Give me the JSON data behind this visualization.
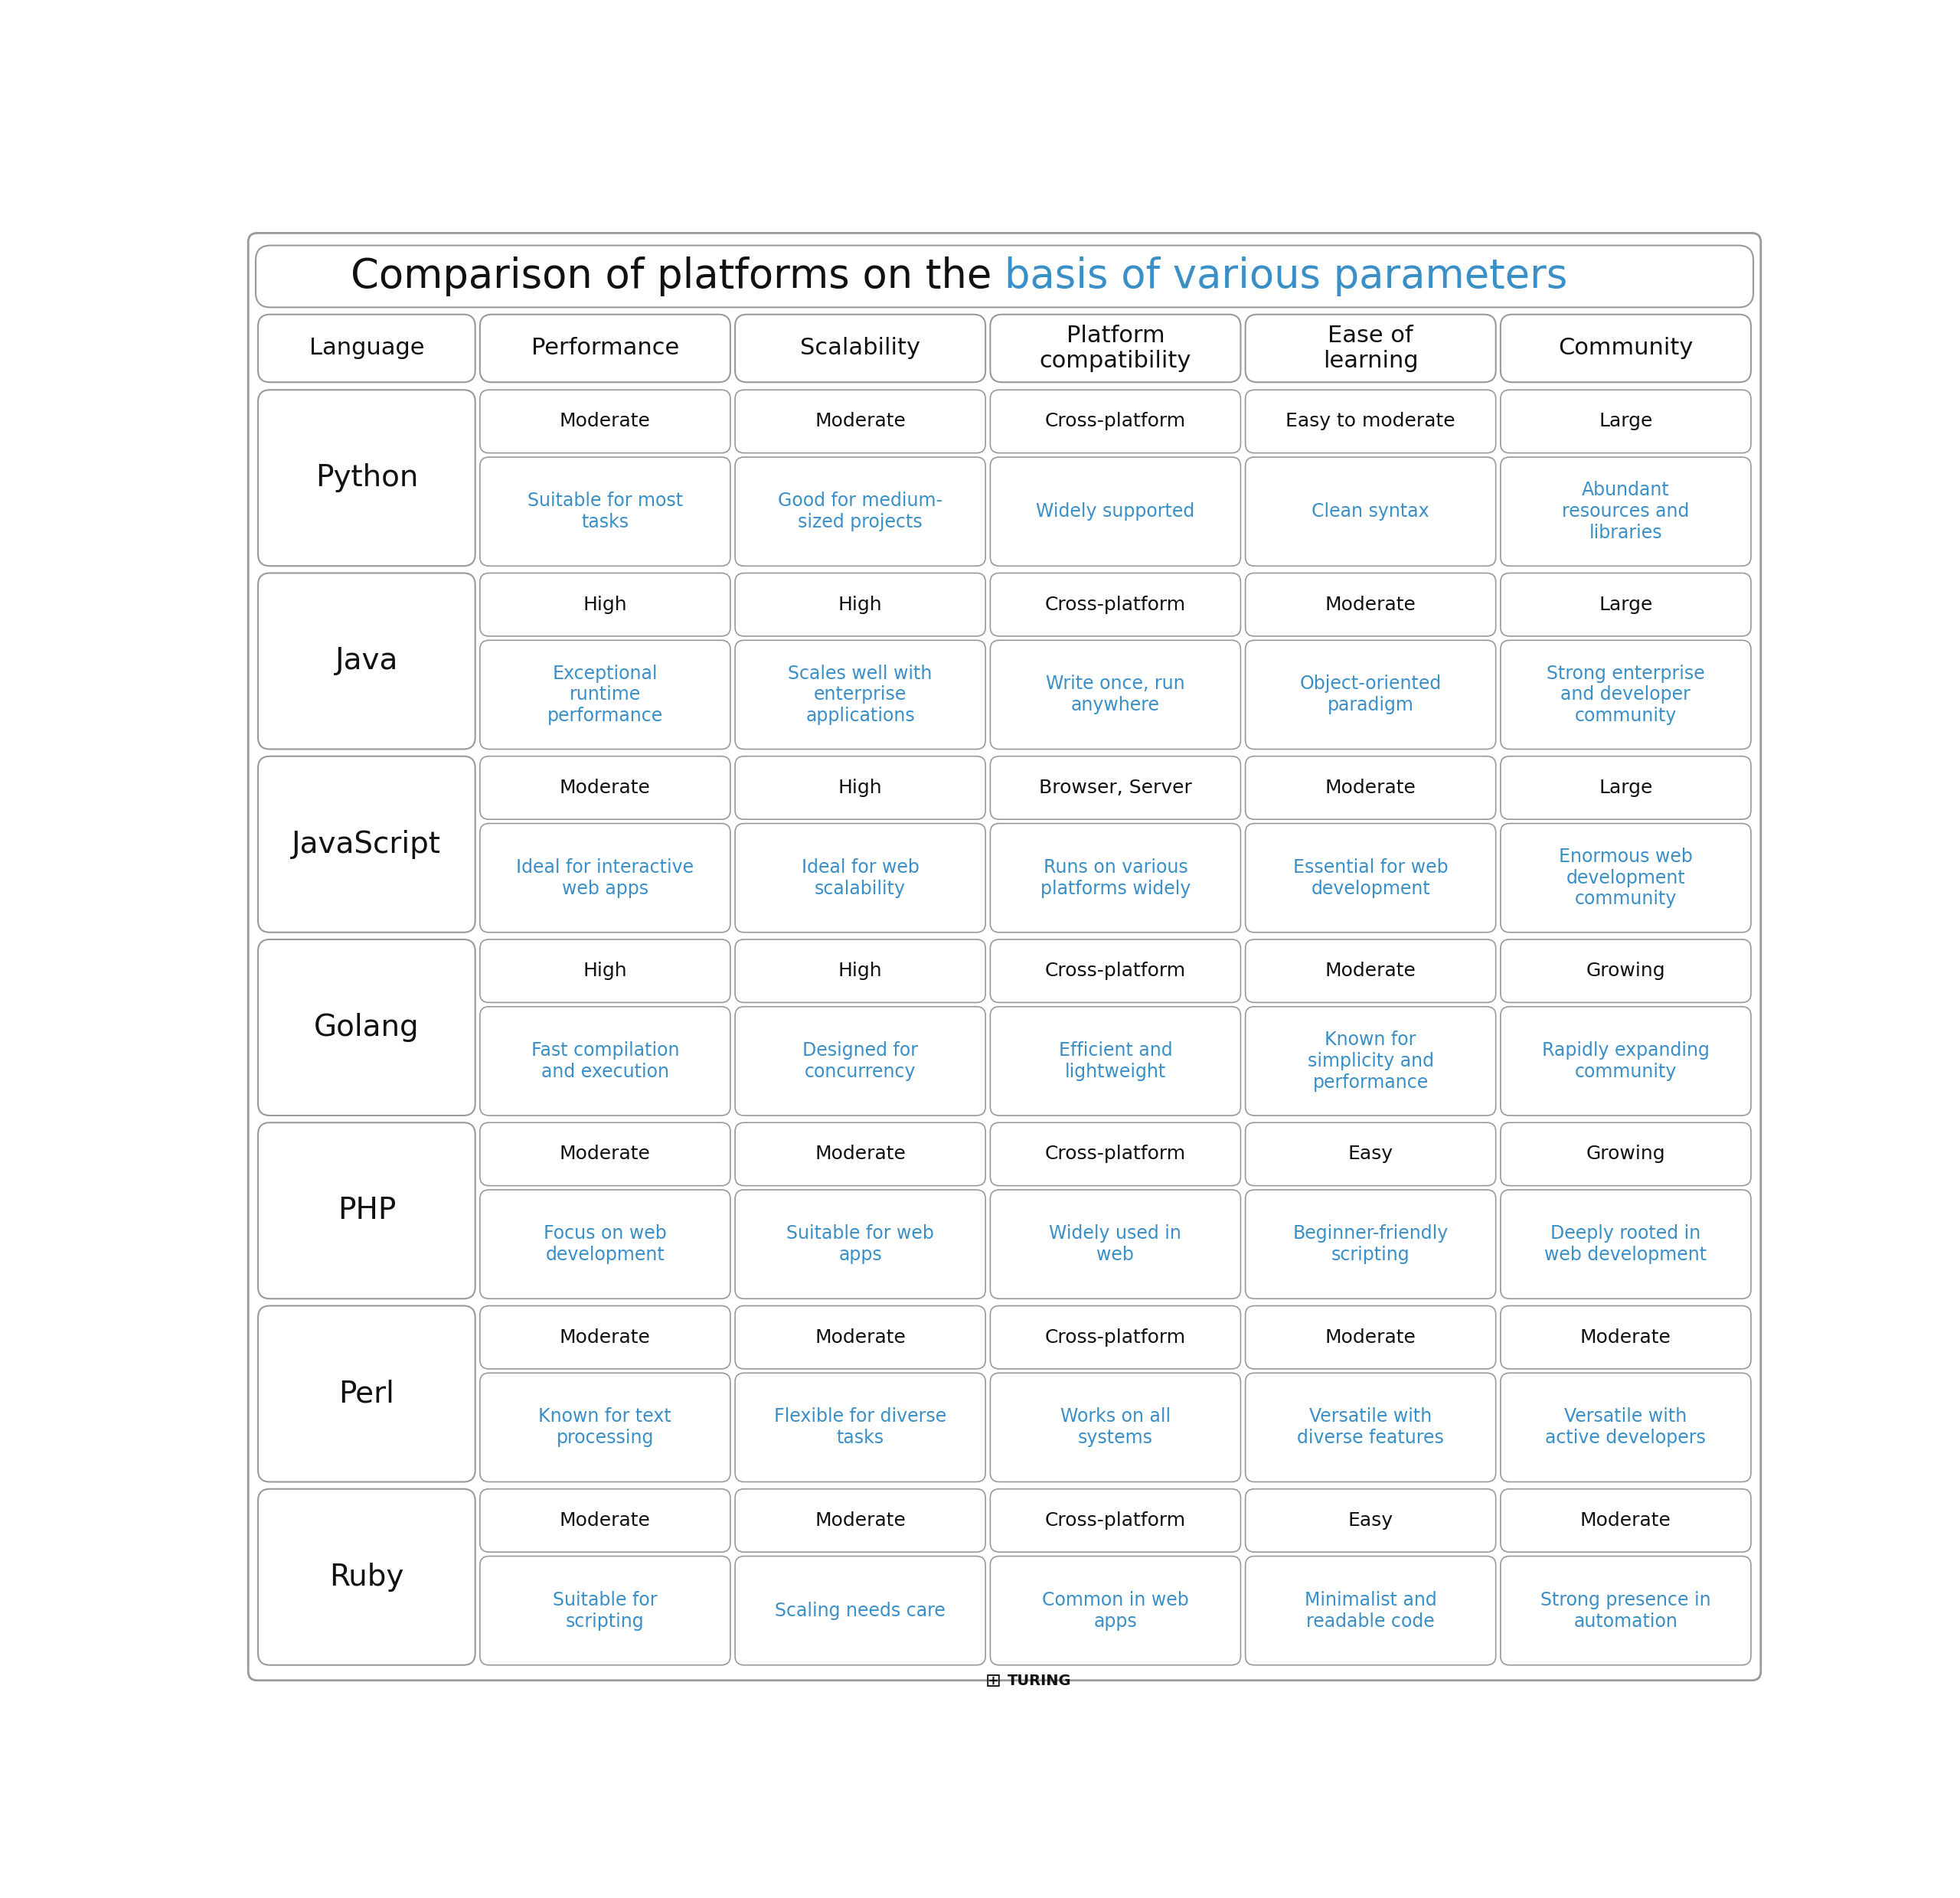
{
  "title_black": "Comparison of platforms on the ",
  "title_blue": "basis of various parameters",
  "title_fontsize": 38,
  "background_color": "#ffffff",
  "border_color": "#999999",
  "text_black": "#111111",
  "text_blue": "#3a8fc7",
  "header_fontsize": 22,
  "lang_fontsize": 28,
  "cell_black_fontsize": 18,
  "cell_blue_fontsize": 17,
  "headers": [
    "Language",
    "Performance",
    "Scalability",
    "Platform\ncompatibility",
    "Ease of\nlearning",
    "Community"
  ],
  "languages": [
    "Python",
    "Java",
    "JavaScript",
    "Golang",
    "PHP",
    "Perl",
    "Ruby"
  ],
  "data": [
    {
      "lang": "Python",
      "cells": [
        [
          "Moderate",
          "Suitable for most\ntasks"
        ],
        [
          "Moderate",
          "Good for medium-\nsized projects"
        ],
        [
          "Cross-platform",
          "Widely supported"
        ],
        [
          "Easy to moderate",
          "Clean syntax"
        ],
        [
          "Large",
          "Abundant\nresources and\nlibraries"
        ]
      ]
    },
    {
      "lang": "Java",
      "cells": [
        [
          "High",
          "Exceptional\nruntime\nperformance"
        ],
        [
          "High",
          "Scales well with\nenterprise\napplications"
        ],
        [
          "Cross-platform",
          "Write once, run\nanywhere"
        ],
        [
          "Moderate",
          "Object-oriented\nparadigm"
        ],
        [
          "Large",
          "Strong enterprise\nand developer\ncommunity"
        ]
      ]
    },
    {
      "lang": "JavaScript",
      "cells": [
        [
          "Moderate",
          "Ideal for interactive\nweb apps"
        ],
        [
          "High",
          "Ideal for web\nscalability"
        ],
        [
          "Browser, Server",
          "Runs on various\nplatforms widely"
        ],
        [
          "Moderate",
          "Essential for web\ndevelopment"
        ],
        [
          "Large",
          "Enormous web\ndevelopment\ncommunity"
        ]
      ]
    },
    {
      "lang": "Golang",
      "cells": [
        [
          "High",
          "Fast compilation\nand execution"
        ],
        [
          "High",
          "Designed for\nconcurrency"
        ],
        [
          "Cross-platform",
          "Efficient and\nlightweight"
        ],
        [
          "Moderate",
          "Known for\nsimplicity and\nperformance"
        ],
        [
          "Growing",
          "Rapidly expanding\ncommunity"
        ]
      ]
    },
    {
      "lang": "PHP",
      "cells": [
        [
          "Moderate",
          "Focus on web\ndevelopment"
        ],
        [
          "Moderate",
          "Suitable for web\napps"
        ],
        [
          "Cross-platform",
          "Widely used in\nweb"
        ],
        [
          "Easy",
          "Beginner-friendly\nscripting"
        ],
        [
          "Growing",
          "Deeply rooted in\nweb development"
        ]
      ]
    },
    {
      "lang": "Perl",
      "cells": [
        [
          "Moderate",
          "Known for text\nprocessing"
        ],
        [
          "Moderate",
          "Flexible for diverse\ntasks"
        ],
        [
          "Cross-platform",
          "Works on all\nsystems"
        ],
        [
          "Moderate",
          "Versatile with\ndiverse features"
        ],
        [
          "Moderate",
          "Versatile with\nactive developers"
        ]
      ]
    },
    {
      "lang": "Ruby",
      "cells": [
        [
          "Moderate",
          "Suitable for\nscripting"
        ],
        [
          "Moderate",
          "Scaling needs care"
        ],
        [
          "Cross-platform",
          "Common in web\napps"
        ],
        [
          "Easy",
          "Minimalist and\nreadable code"
        ],
        [
          "Moderate",
          "Strong presence in\nautomation"
        ]
      ]
    }
  ]
}
